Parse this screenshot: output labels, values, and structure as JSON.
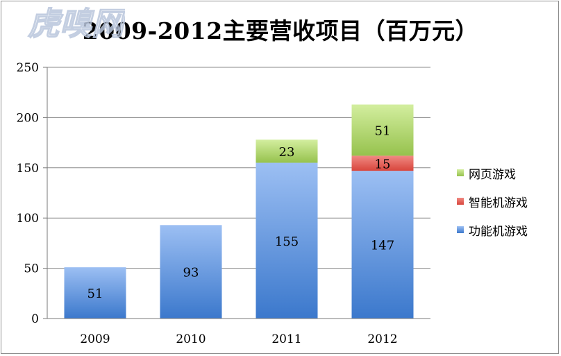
{
  "chart_data": {
    "type": "bar",
    "stacked": true,
    "title": "2009-2012主要营收项目（百万元）",
    "categories": [
      "2009",
      "2010",
      "2011",
      "2012"
    ],
    "series": [
      {
        "name": "功能机游戏",
        "values": [
          51,
          93,
          155,
          147
        ],
        "color": "#5b8fd6"
      },
      {
        "name": "智能机游戏",
        "values": [
          0,
          0,
          0,
          15
        ],
        "color": "#e05a52"
      },
      {
        "name": "网页游戏",
        "values": [
          0,
          0,
          23,
          51
        ],
        "color": "#a2cc5a"
      }
    ],
    "y_ticks": [
      "0",
      "50",
      "100",
      "150",
      "200",
      "250"
    ],
    "ylim": [
      0,
      250
    ],
    "grid": true,
    "legend_position": "right",
    "xlabel": "",
    "ylabel": ""
  },
  "watermark": {
    "text": "虎嗅网"
  }
}
